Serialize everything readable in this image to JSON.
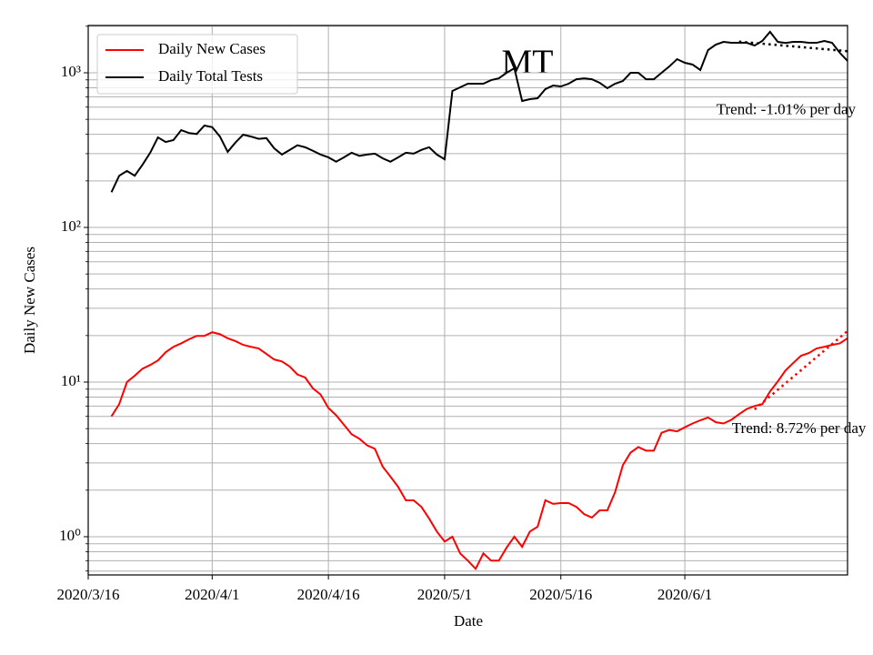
{
  "chart_data": {
    "type": "line",
    "title": "MT",
    "xlabel": "Date",
    "ylabel": "Daily New Cases",
    "log_y": true,
    "grid": true,
    "legend": "upper left",
    "xlim": [
      "2020/3/16",
      "2020/6/22"
    ],
    "xticks": [
      "2020/3/16",
      "2020/4/1",
      "2020/4/16",
      "2020/5/1",
      "2020/5/16",
      "2020/6/1"
    ],
    "ylim": [
      0.566,
      2023
    ],
    "yticks": [
      {
        "value": 1,
        "label": "10⁰"
      },
      {
        "value": 10,
        "label": "10¹"
      },
      {
        "value": 100,
        "label": "10²"
      },
      {
        "value": 1000,
        "label": "10³"
      }
    ],
    "yminorticks": [
      0.6,
      0.7,
      0.8,
      0.9,
      2,
      3,
      4,
      5,
      6,
      7,
      8,
      9,
      20,
      30,
      40,
      50,
      60,
      70,
      80,
      90,
      200,
      300,
      400,
      500,
      600,
      700,
      800,
      900,
      2000
    ],
    "x": [
      "2020/3/19",
      "2020/3/20",
      "2020/3/21",
      "2020/3/22",
      "2020/3/23",
      "2020/3/24",
      "2020/3/25",
      "2020/3/26",
      "2020/3/27",
      "2020/3/28",
      "2020/3/29",
      "2020/3/30",
      "2020/3/31",
      "2020/4/1",
      "2020/4/2",
      "2020/4/3",
      "2020/4/4",
      "2020/4/5",
      "2020/4/6",
      "2020/4/7",
      "2020/4/8",
      "2020/4/9",
      "2020/4/10",
      "2020/4/11",
      "2020/4/12",
      "2020/4/13",
      "2020/4/14",
      "2020/4/15",
      "2020/4/16",
      "2020/4/17",
      "2020/4/18",
      "2020/4/19",
      "2020/4/20",
      "2020/4/21",
      "2020/4/22",
      "2020/4/23",
      "2020/4/24",
      "2020/4/25",
      "2020/4/26",
      "2020/4/27",
      "2020/4/28",
      "2020/4/29",
      "2020/4/30",
      "2020/5/1",
      "2020/5/2",
      "2020/5/3",
      "2020/5/4",
      "2020/5/5",
      "2020/5/6",
      "2020/5/7",
      "2020/5/8",
      "2020/5/9",
      "2020/5/10",
      "2020/5/11",
      "2020/5/12",
      "2020/5/13",
      "2020/5/14",
      "2020/5/15",
      "2020/5/16",
      "2020/5/17",
      "2020/5/18",
      "2020/5/19",
      "2020/5/20",
      "2020/5/21",
      "2020/5/22",
      "2020/5/23",
      "2020/5/24",
      "2020/5/25",
      "2020/5/26",
      "2020/5/27",
      "2020/5/28",
      "2020/5/29",
      "2020/5/30",
      "2020/5/31",
      "2020/6/1",
      "2020/6/2",
      "2020/6/3",
      "2020/6/4",
      "2020/6/5",
      "2020/6/6",
      "2020/6/7",
      "2020/6/8",
      "2020/6/9",
      "2020/6/10",
      "2020/6/11",
      "2020/6/12",
      "2020/6/13",
      "2020/6/14",
      "2020/6/15",
      "2020/6/16",
      "2020/6/17",
      "2020/6/18",
      "2020/6/19",
      "2020/6/20",
      "2020/6/21",
      "2020/6/22"
    ],
    "series": [
      {
        "name": "Daily New Cases",
        "color": "#ff0000",
        "values": [
          6,
          7.2,
          10,
          11,
          12.2,
          12.9,
          13.8,
          15.6,
          16.9,
          17.8,
          18.9,
          19.9,
          19.9,
          21,
          20.4,
          19.2,
          18.4,
          17.4,
          16.9,
          16.5,
          15.2,
          14,
          13.6,
          12.6,
          11.2,
          10.7,
          9.1,
          8.3,
          6.8,
          6.1,
          5.3,
          4.6,
          4.3,
          3.9,
          3.7,
          2.84,
          2.45,
          2.1,
          1.72,
          1.72,
          1.56,
          1.31,
          1.08,
          0.93,
          1.0,
          0.78,
          0.7,
          0.62,
          0.78,
          0.7,
          0.7,
          0.85,
          1.0,
          0.86,
          1.08,
          1.16,
          1.72,
          1.63,
          1.65,
          1.65,
          1.56,
          1.4,
          1.33,
          1.48,
          1.48,
          1.94,
          2.9,
          3.5,
          3.8,
          3.6,
          3.6,
          4.7,
          4.9,
          4.8,
          5.1,
          5.4,
          5.66,
          5.9,
          5.5,
          5.4,
          5.7,
          6.2,
          6.7,
          7.0,
          7.2,
          8.7,
          10.1,
          11.9,
          13.3,
          14.8,
          15.4,
          16.5,
          16.9,
          17.4,
          17.8,
          19.2
        ]
      },
      {
        "name": "Daily Total Tests",
        "color": "#000000",
        "values": [
          169,
          216,
          232,
          216,
          254,
          304,
          382,
          357,
          367,
          426,
          408,
          402,
          456,
          445,
          387,
          308,
          354,
          398,
          387,
          374,
          378,
          325,
          296,
          317,
          340,
          330,
          313,
          296,
          284,
          266,
          284,
          304,
          290,
          296,
          300,
          280,
          266,
          284,
          304,
          300,
          317,
          330,
          296,
          276,
          763,
          805,
          850,
          850,
          850,
          897,
          921,
          1000,
          1070,
          657,
          675,
          684,
          784,
          827,
          816,
          850,
          908,
          921,
          908,
          862,
          795,
          850,
          885,
          1000,
          1000,
          908,
          908,
          1000,
          1099,
          1225,
          1161,
          1130,
          1042,
          1403,
          1522,
          1585,
          1563,
          1563,
          1563,
          1500,
          1607,
          1841,
          1585,
          1560,
          1585,
          1585,
          1563,
          1563,
          1607,
          1563,
          1347,
          1193
        ]
      }
    ],
    "trends": [
      {
        "label": "Trend: -1.01% per day",
        "color": "#000000",
        "x": [
          "2020/6/8",
          "2020/6/22"
        ],
        "values": [
          1590,
          1380
        ]
      },
      {
        "label": "Trend: 8.72% per day",
        "color": "#ff0000",
        "x": [
          "2020/6/10",
          "2020/6/22"
        ],
        "values": [
          6.66,
          21.4
        ]
      }
    ]
  }
}
